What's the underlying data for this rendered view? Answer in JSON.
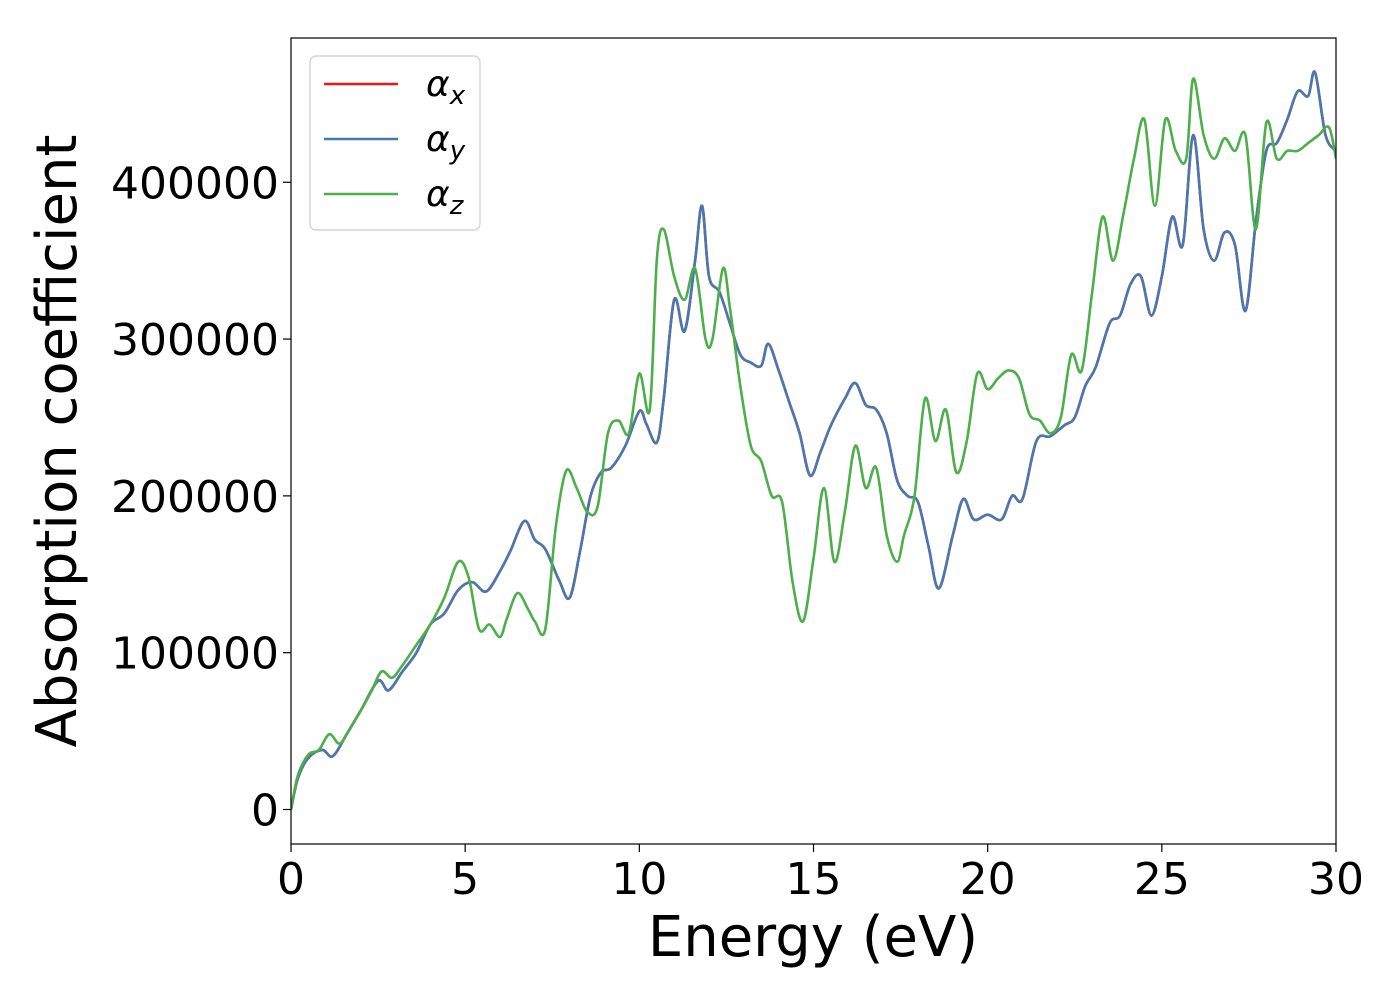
{
  "chart_data": {
    "type": "line",
    "xlabel": "Energy (eV)",
    "ylabel": "Absorption coefficient",
    "xlim": [
      0,
      30
    ],
    "ylim": [
      -22000,
      492000
    ],
    "x_ticks": [
      "0",
      "5",
      "10",
      "15",
      "20",
      "25",
      "30"
    ],
    "y_ticks": [
      "0",
      "100000",
      "200000",
      "300000",
      "400000"
    ],
    "grid": false,
    "legend_position": "top-left",
    "series": [
      {
        "name": "αx",
        "symbol": "α",
        "subscript": "x",
        "color": "#e41a1c",
        "x": [
          0,
          0.2,
          0.5,
          0.9,
          1.2,
          1.6,
          2.0,
          2.5,
          2.8,
          3.2,
          3.6,
          4.0,
          4.4,
          4.8,
          5.2,
          5.6,
          6.0,
          6.3,
          6.7,
          7.0,
          7.3,
          7.7,
          8.0,
          8.3,
          8.6,
          8.9,
          9.2,
          9.6,
          10.0,
          10.2,
          10.5,
          10.7,
          11.0,
          11.3,
          11.6,
          11.8,
          12.0,
          12.3,
          12.6,
          12.9,
          13.2,
          13.5,
          13.7,
          14.0,
          14.3,
          14.6,
          14.9,
          15.2,
          15.5,
          15.9,
          16.2,
          16.5,
          16.8,
          17.1,
          17.4,
          17.7,
          18.0,
          18.3,
          18.6,
          19.0,
          19.3,
          19.6,
          20.0,
          20.4,
          20.7,
          21.0,
          21.4,
          21.8,
          22.2,
          22.5,
          22.8,
          23.1,
          23.5,
          23.8,
          24.1,
          24.4,
          24.7,
          25.0,
          25.3,
          25.6,
          25.9,
          26.2,
          26.5,
          26.8,
          27.1,
          27.4,
          27.7,
          28.0,
          28.3,
          28.6,
          28.9,
          29.2,
          29.4,
          29.7,
          30.0
        ],
        "y": [
          0,
          20000,
          33000,
          38000,
          34000,
          48000,
          63000,
          82000,
          76000,
          88000,
          100000,
          118000,
          125000,
          140000,
          145000,
          139000,
          152000,
          165000,
          184000,
          172000,
          166000,
          146000,
          135000,
          165000,
          200000,
          215000,
          218000,
          232000,
          254000,
          246000,
          234000,
          262000,
          325000,
          305000,
          350000,
          385000,
          340000,
          330000,
          310000,
          290000,
          285000,
          283000,
          297000,
          280000,
          260000,
          240000,
          213000,
          228000,
          245000,
          262000,
          272000,
          258000,
          255000,
          240000,
          210000,
          200000,
          196000,
          168000,
          141000,
          175000,
          198000,
          185000,
          188000,
          185000,
          200000,
          198000,
          235000,
          238000,
          245000,
          250000,
          270000,
          282000,
          310000,
          315000,
          335000,
          340000,
          315000,
          340000,
          378000,
          360000,
          430000,
          370000,
          350000,
          368000,
          360000,
          318000,
          375000,
          420000,
          425000,
          440000,
          458000,
          455000,
          470000,
          430000,
          420000
        ]
      },
      {
        "name": "αy",
        "symbol": "α",
        "subscript": "y",
        "color": "#4878b0",
        "x": [
          0,
          0.2,
          0.5,
          0.9,
          1.2,
          1.6,
          2.0,
          2.5,
          2.8,
          3.2,
          3.6,
          4.0,
          4.4,
          4.8,
          5.2,
          5.6,
          6.0,
          6.3,
          6.7,
          7.0,
          7.3,
          7.7,
          8.0,
          8.3,
          8.6,
          8.9,
          9.2,
          9.6,
          10.0,
          10.2,
          10.5,
          10.7,
          11.0,
          11.3,
          11.6,
          11.8,
          12.0,
          12.3,
          12.6,
          12.9,
          13.2,
          13.5,
          13.7,
          14.0,
          14.3,
          14.6,
          14.9,
          15.2,
          15.5,
          15.9,
          16.2,
          16.5,
          16.8,
          17.1,
          17.4,
          17.7,
          18.0,
          18.3,
          18.6,
          19.0,
          19.3,
          19.6,
          20.0,
          20.4,
          20.7,
          21.0,
          21.4,
          21.8,
          22.2,
          22.5,
          22.8,
          23.1,
          23.5,
          23.8,
          24.1,
          24.4,
          24.7,
          25.0,
          25.3,
          25.6,
          25.9,
          26.2,
          26.5,
          26.8,
          27.1,
          27.4,
          27.7,
          28.0,
          28.3,
          28.6,
          28.9,
          29.2,
          29.4,
          29.7,
          30.0
        ],
        "y": [
          0,
          20000,
          33000,
          38000,
          34000,
          48000,
          63000,
          82000,
          76000,
          88000,
          100000,
          118000,
          125000,
          140000,
          145000,
          139000,
          152000,
          165000,
          184000,
          172000,
          166000,
          146000,
          135000,
          165000,
          200000,
          215000,
          218000,
          232000,
          254000,
          246000,
          234000,
          262000,
          325000,
          305000,
          350000,
          385000,
          340000,
          330000,
          310000,
          290000,
          285000,
          283000,
          297000,
          280000,
          260000,
          240000,
          213000,
          228000,
          245000,
          262000,
          272000,
          258000,
          255000,
          240000,
          210000,
          200000,
          196000,
          168000,
          141000,
          175000,
          198000,
          185000,
          188000,
          185000,
          200000,
          198000,
          235000,
          238000,
          245000,
          250000,
          270000,
          282000,
          310000,
          315000,
          335000,
          340000,
          315000,
          340000,
          378000,
          360000,
          430000,
          370000,
          350000,
          368000,
          360000,
          318000,
          375000,
          420000,
          425000,
          440000,
          458000,
          455000,
          470000,
          430000,
          420000
        ]
      },
      {
        "name": "αz",
        "symbol": "α",
        "subscript": "z",
        "color": "#4daf4a",
        "x": [
          0,
          0.2,
          0.5,
          0.8,
          1.1,
          1.4,
          1.7,
          2.0,
          2.3,
          2.6,
          2.9,
          3.2,
          3.6,
          4.0,
          4.4,
          4.8,
          5.1,
          5.4,
          5.7,
          6.0,
          6.2,
          6.5,
          6.8,
          7.0,
          7.3,
          7.6,
          7.9,
          8.2,
          8.5,
          8.8,
          9.1,
          9.4,
          9.7,
          10.0,
          10.3,
          10.5,
          10.7,
          11.0,
          11.3,
          11.6,
          11.9,
          12.1,
          12.4,
          12.6,
          12.9,
          13.2,
          13.5,
          13.8,
          14.1,
          14.4,
          14.7,
          15.0,
          15.3,
          15.6,
          15.9,
          16.2,
          16.5,
          16.8,
          17.1,
          17.4,
          17.6,
          17.9,
          18.2,
          18.5,
          18.8,
          19.1,
          19.4,
          19.7,
          20.0,
          20.3,
          20.6,
          20.9,
          21.2,
          21.5,
          21.8,
          22.1,
          22.4,
          22.7,
          23.0,
          23.3,
          23.6,
          23.9,
          24.2,
          24.5,
          24.8,
          25.1,
          25.4,
          25.7,
          25.9,
          26.2,
          26.5,
          26.8,
          27.1,
          27.4,
          27.7,
          28.0,
          28.3,
          28.6,
          28.9,
          29.2,
          29.5,
          29.8,
          30.0
        ],
        "y": [
          0,
          22000,
          35000,
          38000,
          48000,
          42000,
          52000,
          63000,
          75000,
          88000,
          84000,
          92000,
          105000,
          118000,
          135000,
          158000,
          148000,
          115000,
          118000,
          110000,
          122000,
          138000,
          128000,
          120000,
          115000,
          180000,
          216000,
          205000,
          190000,
          193000,
          240000,
          248000,
          240000,
          278000,
          255000,
          350000,
          370000,
          340000,
          325000,
          345000,
          300000,
          300000,
          345000,
          320000,
          270000,
          232000,
          222000,
          200000,
          196000,
          145000,
          120000,
          160000,
          205000,
          158000,
          190000,
          232000,
          205000,
          218000,
          175000,
          158000,
          175000,
          200000,
          262000,
          235000,
          255000,
          215000,
          235000,
          278000,
          268000,
          275000,
          280000,
          275000,
          252000,
          248000,
          240000,
          250000,
          290000,
          280000,
          330000,
          378000,
          350000,
          380000,
          415000,
          440000,
          385000,
          440000,
          420000,
          415000,
          466000,
          430000,
          415000,
          428000,
          420000,
          430000,
          370000,
          438000,
          415000,
          420000,
          420000,
          425000,
          430000,
          435000,
          415000
        ]
      }
    ]
  }
}
